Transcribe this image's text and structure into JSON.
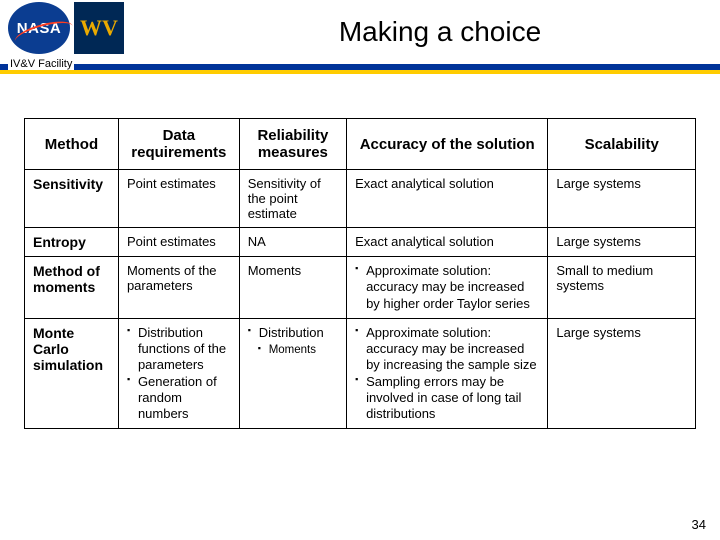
{
  "header": {
    "title": "Making a choice",
    "facility_label": "IV&V Facility",
    "nasa_text": "NASA",
    "wv_text": "WV"
  },
  "table": {
    "headers": {
      "c1": "Method",
      "c2": "Data requirements",
      "c3": "Reliability measures",
      "c4": "Accuracy of the solution",
      "c5": "Scalability"
    },
    "rows": {
      "r1": {
        "method": "Sensitivity",
        "data_req": "Point estimates",
        "reliability": "Sensitivity of the point estimate",
        "accuracy": "Exact analytical solution",
        "scalability": "Large systems"
      },
      "r2": {
        "method": "Entropy",
        "data_req": "Point estimates",
        "reliability": "NA",
        "accuracy": "Exact analytical solution",
        "scalability": "Large systems"
      },
      "r3": {
        "method": "Method of moments",
        "data_req": "Moments of the parameters",
        "reliability": "Moments",
        "accuracy_bullet": "Approximate solution: accuracy may be increased by higher order Taylor series",
        "scalability": "Small to medium systems"
      },
      "r4": {
        "method": "Monte Carlo simulation",
        "data_req_b1": "Distribution functions of the parameters",
        "data_req_b2": "Generation of random numbers",
        "reliability_b1": "Distribution",
        "reliability_b2": "Moments",
        "accuracy_b1": "Approximate solution: accuracy may be increased by increasing the sample size",
        "accuracy_b2": "Sampling errors may be involved in case of long tail distributions",
        "scalability": "Large systems"
      }
    }
  },
  "page_number": "34",
  "colors": {
    "rule_blue": "#003399",
    "rule_yellow": "#ffcc00",
    "nasa_bg": "#0b3d91",
    "nasa_swoosh": "#fc3d21",
    "wv_bg": "#002855",
    "wv_gold": "#eaaa00"
  }
}
